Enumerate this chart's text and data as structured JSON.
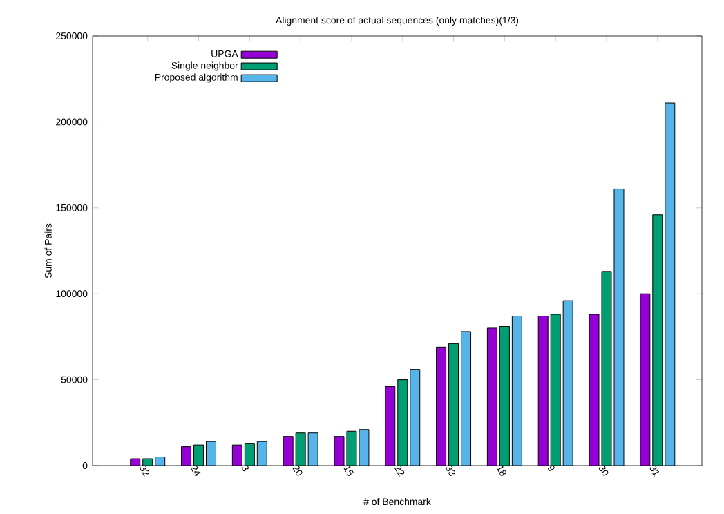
{
  "chart_data": {
    "type": "bar",
    "title": "Alignment score of actual sequences (only matches)(1/3)",
    "xlabel": "# of Benchmark",
    "ylabel": "Sum of Pairs",
    "categories": [
      "32",
      "24",
      "3",
      "20",
      "15",
      "22",
      "33",
      "18",
      "9",
      "30",
      "31"
    ],
    "series": [
      {
        "name": "UPGA",
        "color": "#9400d3",
        "values": [
          4000,
          11000,
          12000,
          17000,
          17000,
          46000,
          69000,
          80000,
          87000,
          88000,
          100000
        ]
      },
      {
        "name": "Single neighbor",
        "color": "#009e73",
        "values": [
          4000,
          12000,
          13000,
          19000,
          20000,
          50000,
          71000,
          81000,
          88000,
          113000,
          146000
        ]
      },
      {
        "name": "Proposed algorithm",
        "color": "#56b4e9",
        "values": [
          5000,
          14000,
          14000,
          19000,
          21000,
          56000,
          78000,
          87000,
          96000,
          161000,
          211000
        ]
      }
    ],
    "ylim": [
      0,
      250000
    ],
    "yticks": [
      0,
      50000,
      100000,
      150000,
      200000,
      250000
    ],
    "grid": false,
    "legend": "top left"
  }
}
